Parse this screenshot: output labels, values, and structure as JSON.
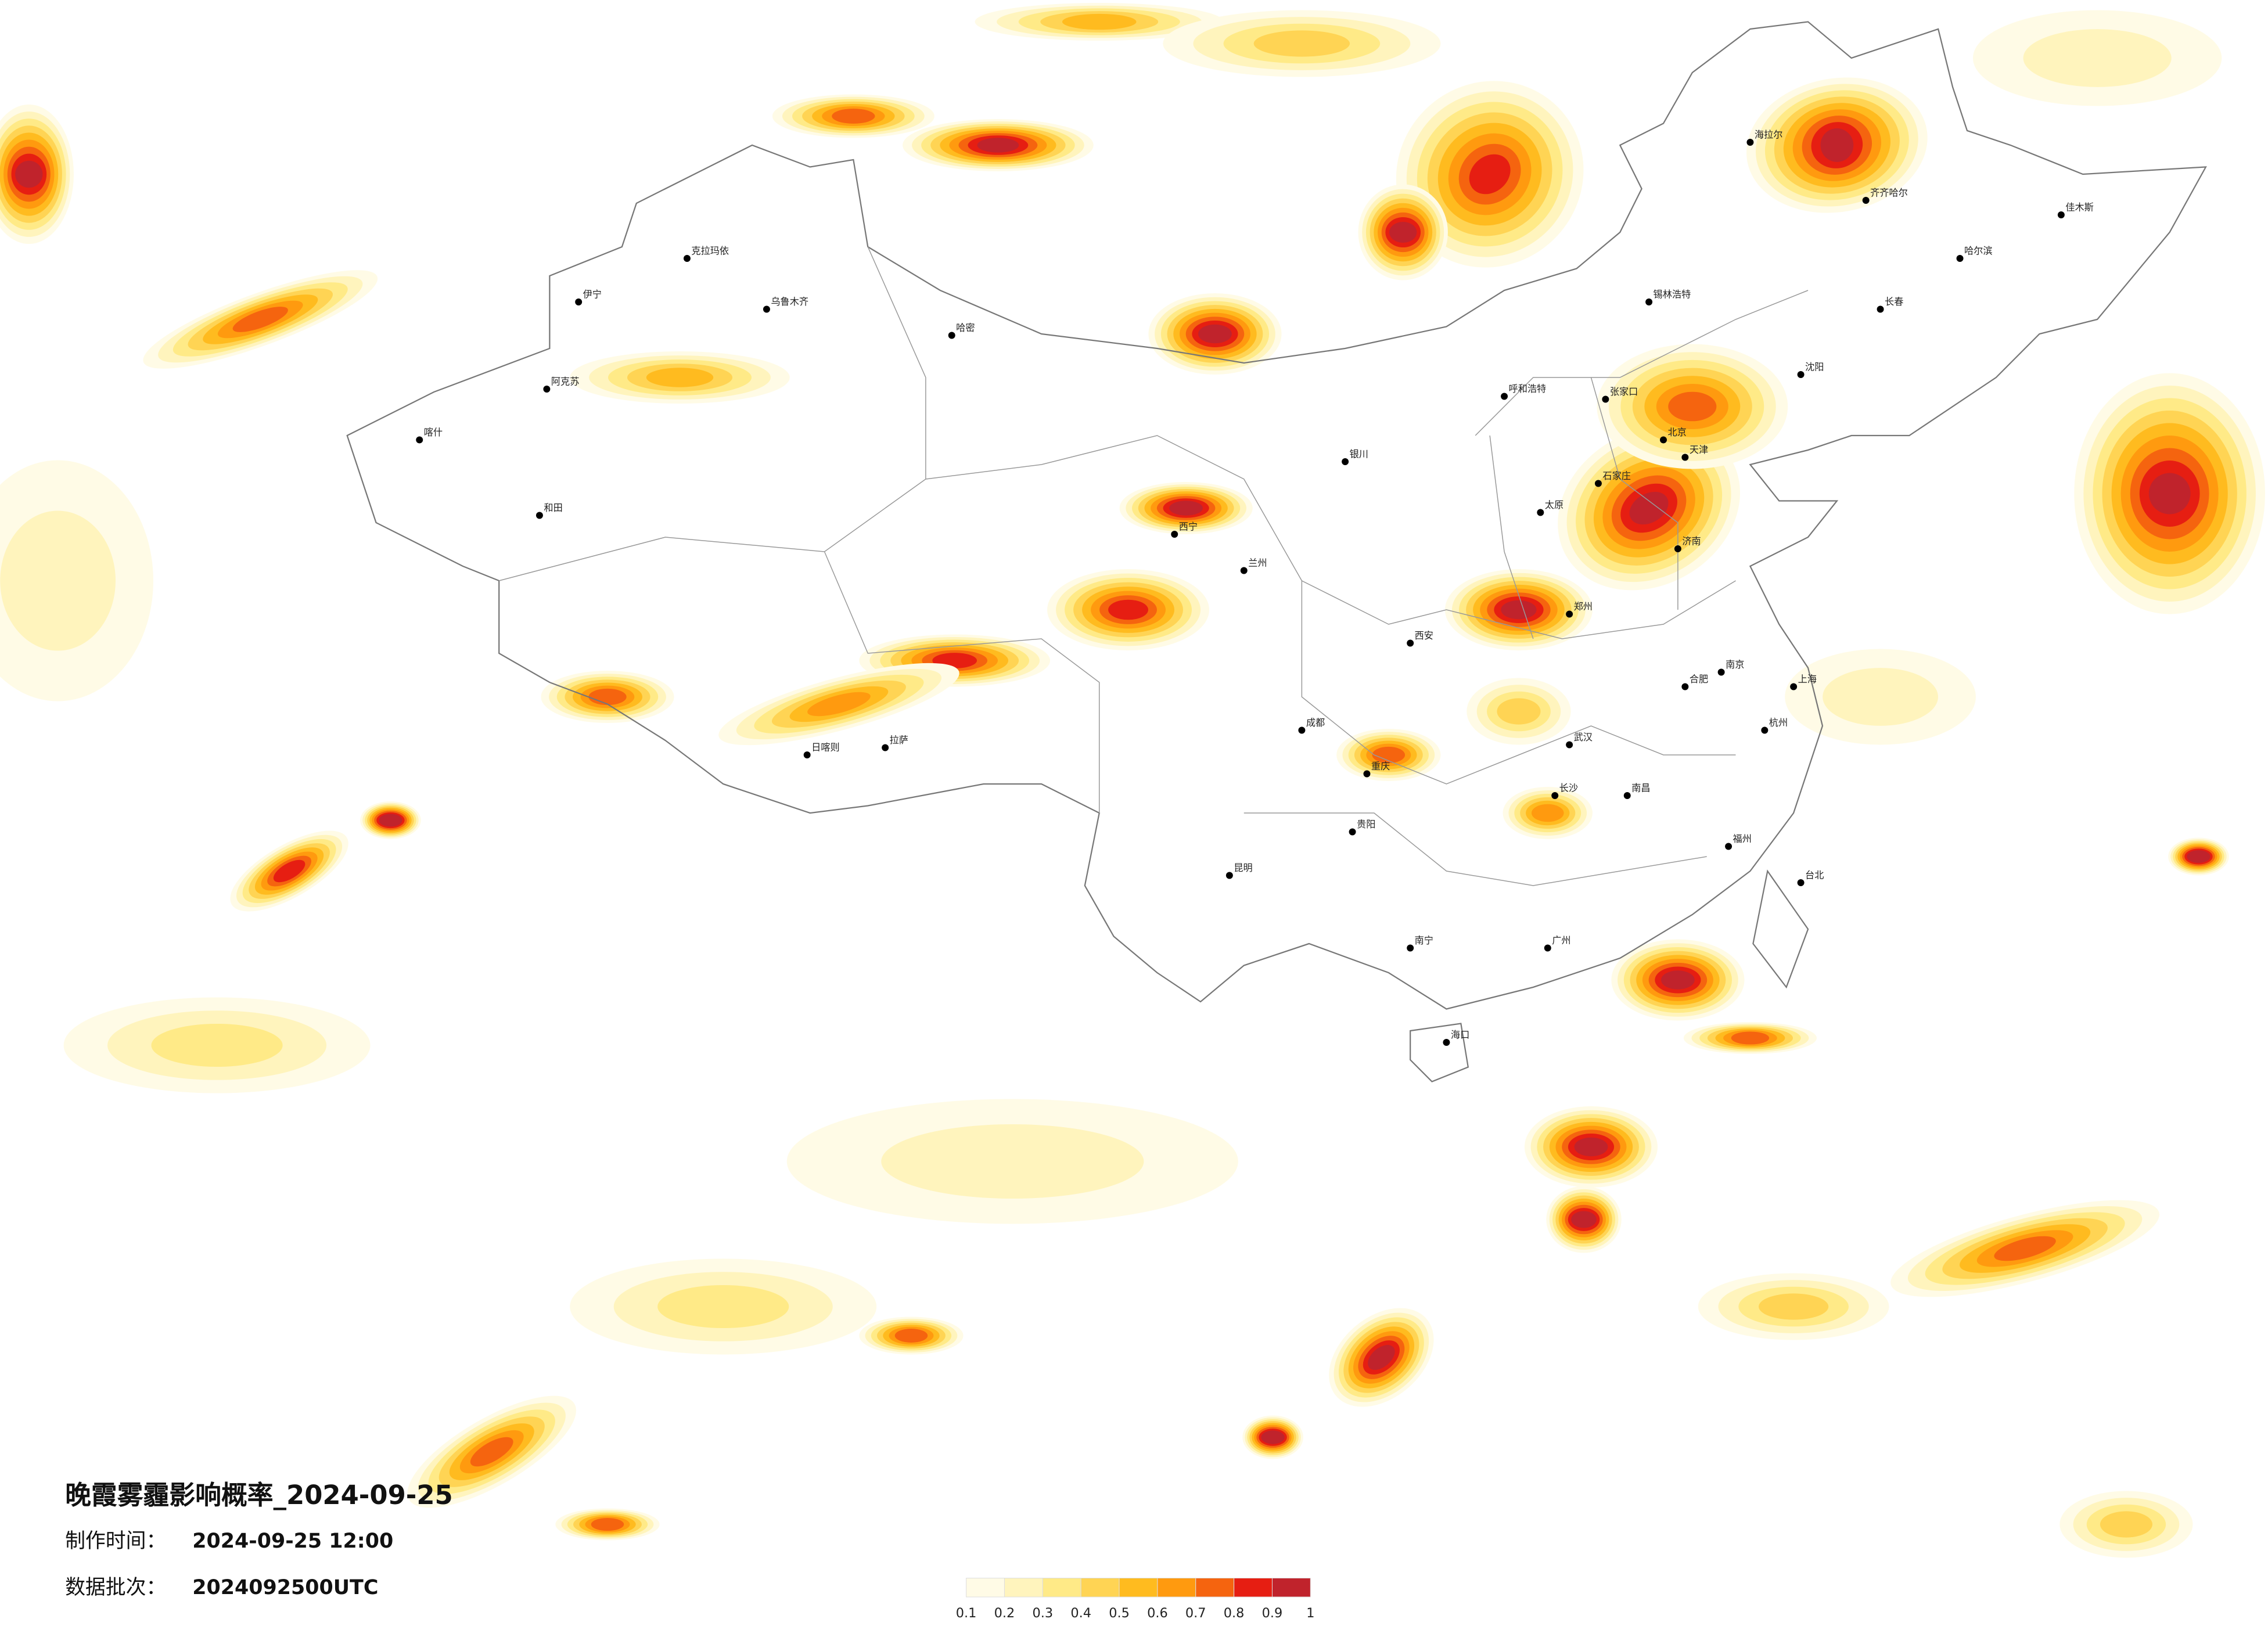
{
  "title": "晚霞雾霾影响概率_2024-09-25",
  "meta": [
    {
      "label": "制作时间：",
      "value": "2024-09-25 12:00"
    },
    {
      "label": "数据批次：",
      "value": "2024092500UTC"
    }
  ],
  "legend": {
    "ticks": [
      0.1,
      0.2,
      0.3,
      0.4,
      0.5,
      0.6,
      0.7,
      0.8,
      0.9,
      1
    ],
    "colors": [
      "#fffbe6",
      "#fff4bd",
      "#ffea87",
      "#ffd454",
      "#ffbb1f",
      "#ff9a0f",
      "#f5640f",
      "#e61e12",
      "#c0232c"
    ]
  },
  "cities": [
    "乌鲁木齐",
    "克拉玛依",
    "哈密",
    "和田",
    "拉萨",
    "日喀则",
    "西宁",
    "兰州",
    "成都",
    "重庆",
    "昆明",
    "贵阳",
    "南宁",
    "广州",
    "海口",
    "福州",
    "台北",
    "上海",
    "南京",
    "武汉",
    "长沙",
    "郑州",
    "西安",
    "太原",
    "石家庄",
    "北京",
    "天津",
    "济南",
    "沈阳",
    "长春",
    "哈尔滨",
    "呼和浩特",
    "银川",
    "张家口",
    "锡林浩特",
    "海拉尔",
    "齐齐哈尔",
    "佳木斯",
    "阿克苏",
    "喀什",
    "伊宁",
    "南昌",
    "杭州",
    "合肥"
  ]
}
